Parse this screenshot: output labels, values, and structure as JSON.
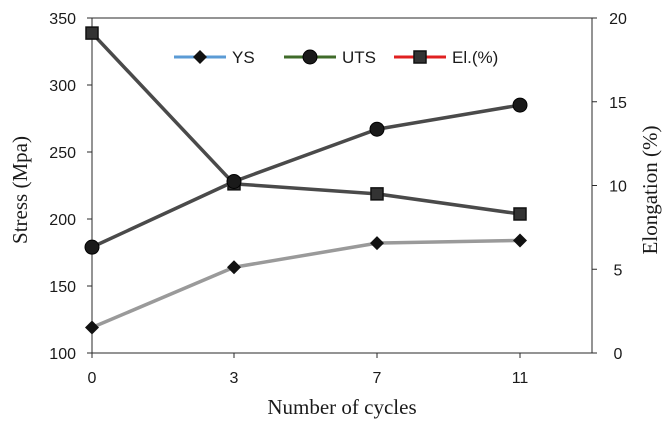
{
  "chart_data": {
    "type": "line",
    "title": "",
    "xlabel": "Number of cycles",
    "ylabel": "Stress (Mpa)",
    "y2label": "Elongation (%)",
    "categories": [
      "0",
      "3",
      "7",
      "11"
    ],
    "ylim": [
      100,
      350
    ],
    "yticks": [
      "100",
      "150",
      "200",
      "250",
      "300",
      "350"
    ],
    "y2lim": [
      0,
      20
    ],
    "y2ticks": [
      "0",
      "5",
      "10",
      "15",
      "20"
    ],
    "grid": false,
    "legend_position": "top-center",
    "series": [
      {
        "name": "YS",
        "axis": "left",
        "marker": "diamond",
        "line_color": "#9a9a9a",
        "legend_color": "#5b9bd5",
        "values": [
          119,
          164,
          182,
          184
        ]
      },
      {
        "name": "UTS",
        "axis": "left",
        "marker": "circle",
        "line_color": "#4a4a4a",
        "legend_color": "#3f6b2a",
        "values": [
          179,
          228,
          267,
          285
        ]
      },
      {
        "name": "El.(%)",
        "axis": "right",
        "marker": "square",
        "line_color": "#4a4a4a",
        "legend_color": "#e02020",
        "values": [
          19.1,
          10.1,
          9.5,
          8.3
        ]
      }
    ]
  }
}
